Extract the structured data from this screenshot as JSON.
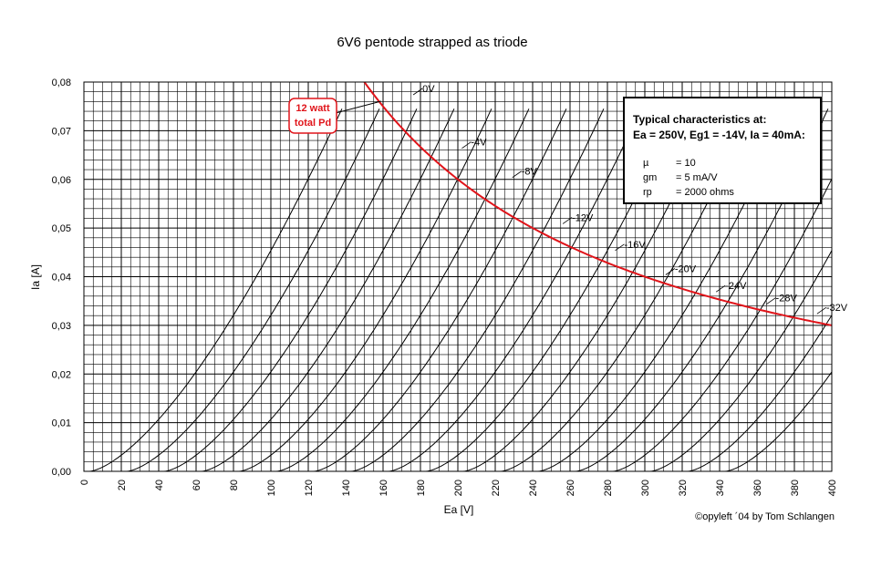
{
  "chart_data": {
    "type": "line",
    "title": "6V6 pentode strapped as triode",
    "xlabel": "Ea [V]",
    "ylabel": "Ia [A]",
    "xlim": [
      0,
      400
    ],
    "ylim": [
      0,
      0.08
    ],
    "x_ticks": [
      "0",
      "20",
      "40",
      "60",
      "80",
      "100",
      "120",
      "140",
      "160",
      "180",
      "200",
      "220",
      "240",
      "260",
      "280",
      "300",
      "320",
      "340",
      "360",
      "380",
      "400"
    ],
    "y_ticks": [
      "0,00",
      "0,01",
      "0,02",
      "0,03",
      "0,04",
      "0,05",
      "0,06",
      "0,07",
      "0,08"
    ],
    "grid": true,
    "grid_minor_per_major_x": 4,
    "grid_minor_per_major_y": 5,
    "family_curve": {
      "mu": 10,
      "k": 4.75e-05,
      "exponent": 1.5,
      "x_offset": 3,
      "grid_voltages": [
        0,
        -2,
        -4,
        -6,
        -8,
        -10,
        -12,
        -14,
        -16,
        -18,
        -20,
        -22,
        -24,
        -26,
        -28,
        -30,
        -32,
        -34
      ],
      "y_max": 0.075
    },
    "series": [
      {
        "name": "0V",
        "label": "0V",
        "label_at": [
          182,
          0.0785
        ]
      },
      {
        "name": "-4V",
        "label": "-4V",
        "label_at": [
          208,
          0.0675
        ]
      },
      {
        "name": "-8V",
        "label": "-8V",
        "label_at": [
          235,
          0.0615
        ]
      },
      {
        "name": "-12V",
        "label": "-12V",
        "label_at": [
          262,
          0.052
        ]
      },
      {
        "name": "-16V",
        "label": "-16V",
        "label_at": [
          290,
          0.0465
        ]
      },
      {
        "name": "-20V",
        "label": "-20V",
        "label_at": [
          317,
          0.0415
        ]
      },
      {
        "name": "-24V",
        "label": "-24V",
        "label_at": [
          344,
          0.038
        ]
      },
      {
        "name": "-28V",
        "label": "-28V",
        "label_at": [
          371,
          0.0355
        ]
      },
      {
        "name": "-32V",
        "label": "-32V",
        "label_at": [
          398,
          0.0335
        ]
      }
    ],
    "dissipation_curve": {
      "name": "12 watt total Pd",
      "power_w": 12,
      "color": "#e0141a",
      "x_from": 150,
      "x_to": 400
    },
    "annotation": {
      "lines": [
        "12 watt",
        "total Pd"
      ],
      "color": "#e0141a"
    },
    "info_box": {
      "heading": [
        "Typical characteristics at:",
        "Ea = 250V, Eg1 = -14V, Ia = 40mA:"
      ],
      "rows": [
        {
          "symbol": "µ",
          "value": "= 10"
        },
        {
          "symbol": "gm",
          "value": "= 5 mA/V"
        },
        {
          "symbol": "rp",
          "value": "= 2000 ohms"
        }
      ]
    },
    "credit": "©opyleft ´04 by Tom Schlangen"
  }
}
